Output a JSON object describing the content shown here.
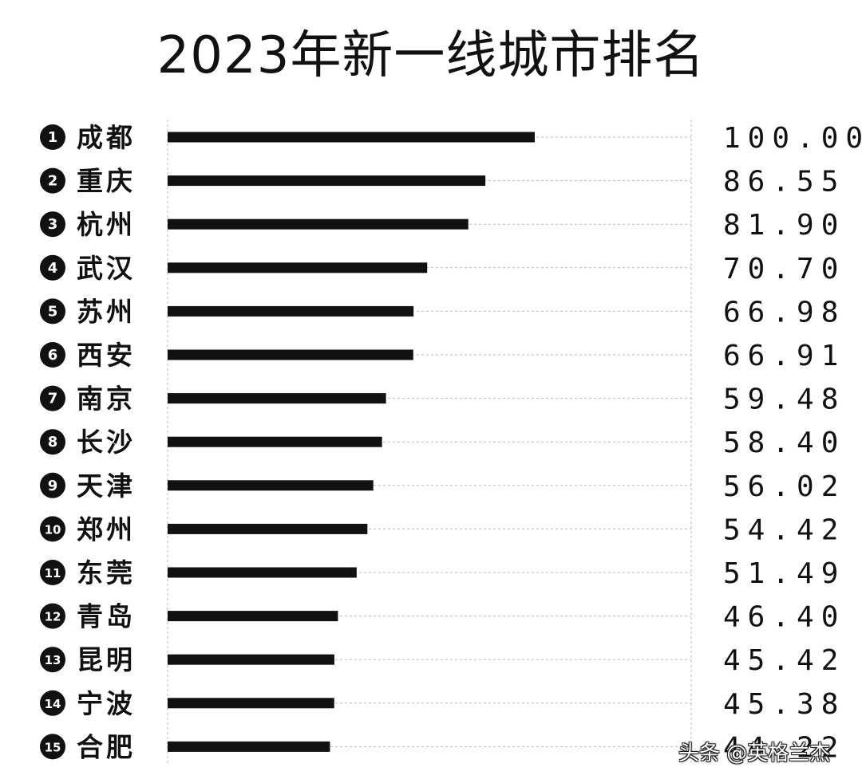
{
  "chart_data": {
    "type": "bar",
    "orientation": "horizontal",
    "title": "2023年新一线城市排名",
    "ranks": [
      "1",
      "2",
      "3",
      "4",
      "5",
      "6",
      "7",
      "8",
      "9",
      "10",
      "11",
      "12",
      "13",
      "14",
      "15"
    ],
    "categories": [
      "成都",
      "重庆",
      "杭州",
      "武汉",
      "苏州",
      "西安",
      "南京",
      "长沙",
      "天津",
      "郑州",
      "东莞",
      "青岛",
      "昆明",
      "宁波",
      "合肥"
    ],
    "values": [
      100.0,
      86.55,
      81.9,
      70.7,
      66.98,
      66.91,
      59.48,
      58.4,
      56.02,
      54.42,
      51.49,
      46.4,
      45.42,
      45.38,
      44.22
    ],
    "value_labels": [
      "100.00",
      "86.55",
      "81.90",
      "70.70",
      "66.98",
      "66.91",
      "59.48",
      "58.40",
      "56.02",
      "54.42",
      "51.49",
      "46.40",
      "45.42",
      "45.38",
      "44.22"
    ],
    "xlim": [
      0,
      100
    ],
    "grid": true,
    "legend": "none",
    "colors": {
      "bar": "#111111",
      "grid": "#bbbbbb",
      "text": "#111111"
    }
  },
  "watermark": "头条 @英格兰杰"
}
